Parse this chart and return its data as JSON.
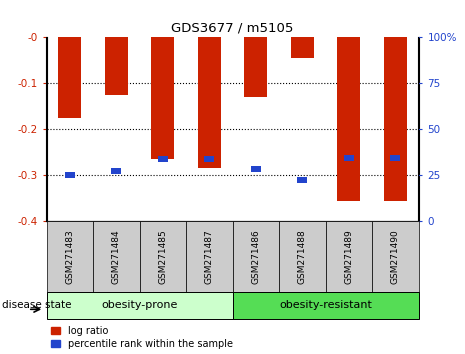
{
  "title": "GDS3677 / m5105",
  "categories": [
    "GSM271483",
    "GSM271484",
    "GSM271485",
    "GSM271487",
    "GSM271486",
    "GSM271488",
    "GSM271489",
    "GSM271490"
  ],
  "log_ratio": [
    -0.175,
    -0.125,
    -0.265,
    -0.285,
    -0.13,
    -0.045,
    -0.355,
    -0.355
  ],
  "percentile_scale": [
    25,
    27.5,
    34,
    34,
    28.5,
    22.5,
    34.5,
    34.5
  ],
  "group1_label": "obesity-prone",
  "group2_label": "obesity-resistant",
  "group1_count": 4,
  "group2_count": 4,
  "disease_state_label": "disease state",
  "legend_log_ratio": "log ratio",
  "legend_percentile": "percentile rank within the sample",
  "bar_color_red": "#cc2200",
  "bar_color_blue": "#2244cc",
  "group1_bg": "#ccffcc",
  "group2_bg": "#55dd55",
  "tick_bg": "#cccccc",
  "ylim_left": [
    -0.4,
    0.0
  ],
  "ylim_right": [
    0,
    100
  ],
  "yticks_left": [
    0.0,
    -0.1,
    -0.2,
    -0.3,
    -0.4
  ],
  "yticks_left_labels": [
    "-0",
    "-0.1",
    "-0.2",
    "-0.3",
    "-0.4"
  ],
  "yticks_right": [
    100,
    75,
    50,
    25,
    0
  ],
  "yticks_right_labels": [
    "100%",
    "75",
    "50",
    "25",
    "0"
  ],
  "gridlines": [
    -0.1,
    -0.2,
    -0.3
  ],
  "bar_width": 0.5
}
